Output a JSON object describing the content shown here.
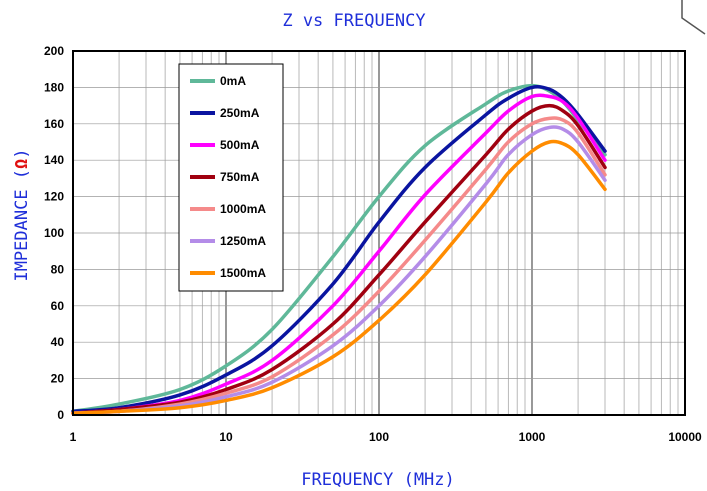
{
  "chart_data": {
    "type": "line",
    "title": "Z vs FREQUENCY",
    "xlabel": "FREQUENCY (MHz)",
    "ylabel_text": "IMPEDANCE (",
    "ylabel_unit": "Ω",
    "ylabel_close": ")",
    "xscale": "log",
    "xlim": [
      1,
      10000
    ],
    "ylim": [
      0,
      200
    ],
    "xticks": [
      1,
      10,
      100,
      1000,
      10000
    ],
    "xtick_labels": [
      "1",
      "10",
      "100",
      "1000",
      "10000"
    ],
    "yticks": [
      0,
      20,
      40,
      60,
      80,
      100,
      120,
      140,
      160,
      180,
      200
    ],
    "ytick_labels": [
      "0",
      "20",
      "40",
      "60",
      "80",
      "100",
      "120",
      "140",
      "160",
      "180",
      "200"
    ],
    "grid": true,
    "legend_position": "top-left",
    "x": [
      1,
      2,
      5,
      10,
      20,
      50,
      100,
      200,
      500,
      700,
      1000,
      1300,
      1600,
      2000,
      3000
    ],
    "series": [
      {
        "name": "0mA",
        "color": "#5fb899",
        "values": [
          2,
          6,
          14,
          27,
          47,
          87,
          120,
          148,
          171,
          178,
          181,
          178,
          172,
          162,
          143
        ]
      },
      {
        "name": "250mA",
        "color": "#0a14a0",
        "values": [
          2,
          4,
          11,
          22,
          38,
          72,
          106,
          136,
          165,
          174,
          180,
          179,
          174,
          165,
          145
        ]
      },
      {
        "name": "500mA",
        "color": "#ff00ff",
        "values": [
          1,
          3,
          8,
          17,
          30,
          60,
          90,
          121,
          155,
          167,
          175,
          175,
          172,
          163,
          140
        ]
      },
      {
        "name": "750mA",
        "color": "#a00010",
        "values": [
          1,
          3,
          7,
          14,
          25,
          50,
          77,
          106,
          143,
          157,
          167,
          170,
          167,
          159,
          136
        ]
      },
      {
        "name": "1000mA",
        "color": "#f58a8a",
        "values": [
          1,
          2,
          6,
          12,
          21,
          44,
          68,
          96,
          135,
          150,
          160,
          163,
          162,
          155,
          132
        ]
      },
      {
        "name": "1250mA",
        "color": "#b48ce8",
        "values": [
          1,
          2,
          5,
          10,
          18,
          38,
          60,
          87,
          127,
          143,
          154,
          158,
          157,
          150,
          129
        ]
      },
      {
        "name": "1500mA",
        "color": "#ff8c00",
        "values": [
          1,
          2,
          4,
          8,
          15,
          32,
          52,
          77,
          117,
          133,
          145,
          150,
          149,
          143,
          124
        ]
      }
    ]
  }
}
